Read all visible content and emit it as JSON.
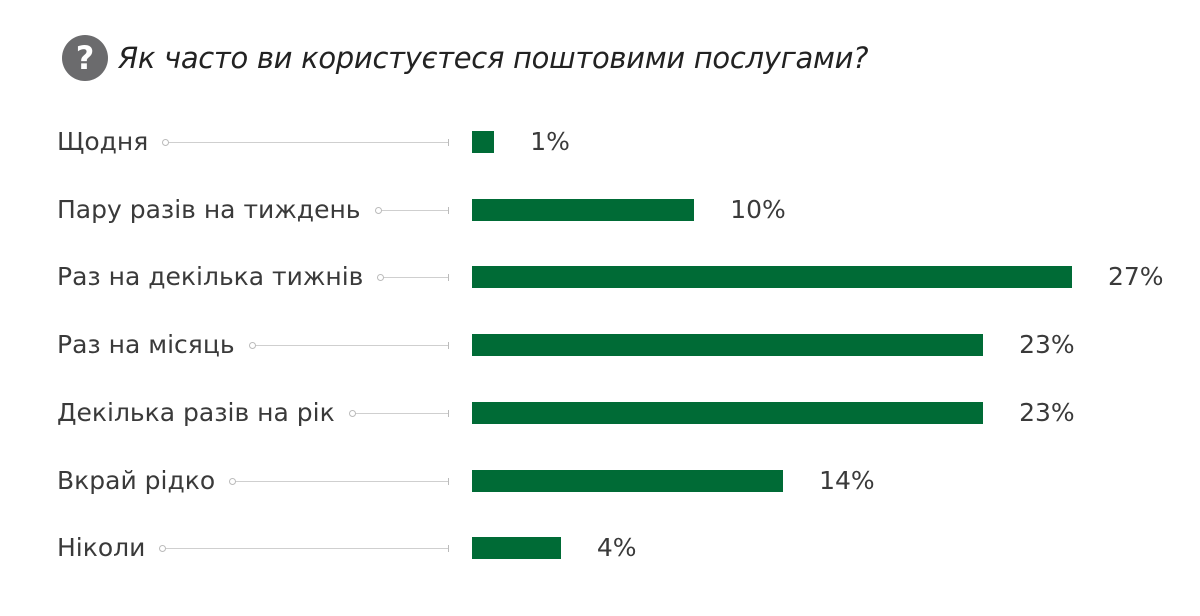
{
  "chart_data": {
    "type": "bar",
    "orientation": "horizontal",
    "title": "Як часто ви користуєтеся поштовими послугами?",
    "title_icon": "question-circle-icon",
    "categories": [
      "Щодня",
      "Пару разів на тиждень",
      "Раз на декілька тижнів",
      "Раз на місяць",
      "Декілька разів на рік",
      "Вкрай рідко",
      "Ніколи"
    ],
    "values": [
      1,
      10,
      27,
      23,
      23,
      14,
      4
    ],
    "value_labels": [
      "1%",
      "10%",
      "27%",
      "23%",
      "23%",
      "14%",
      "4%"
    ],
    "unit": "%",
    "bar_color": "#006b36",
    "xlim": [
      0,
      27
    ],
    "grid": false
  }
}
